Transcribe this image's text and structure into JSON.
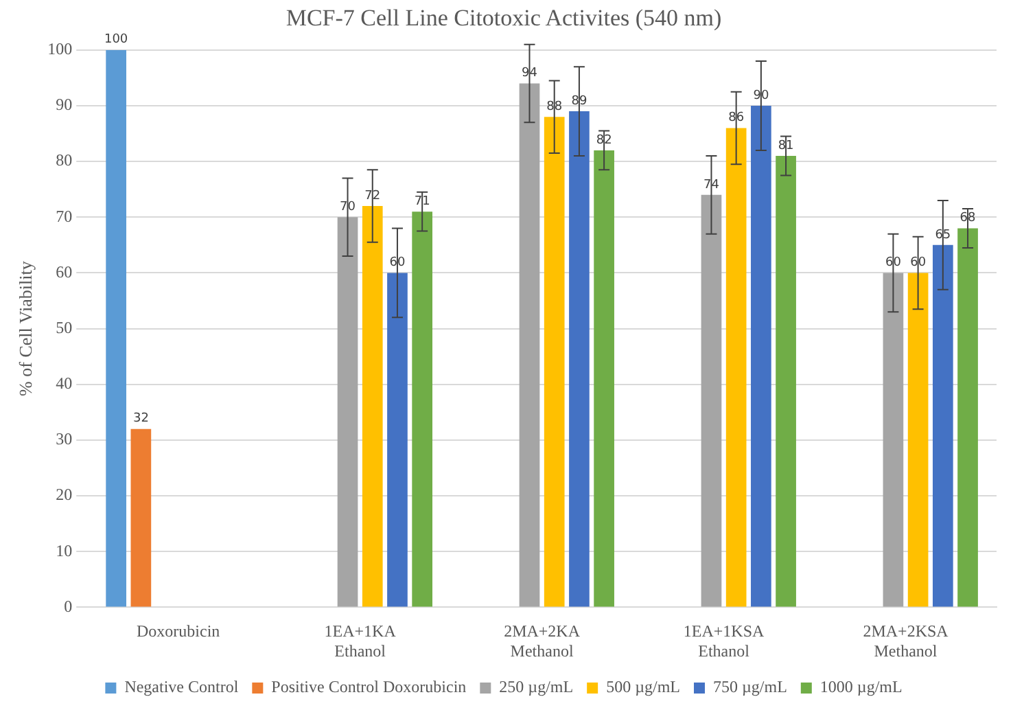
{
  "chart_data": {
    "type": "bar",
    "title": "MCF-7 Cell Line Citotoxic Activites (540 nm)",
    "ylabel": "% of Cell Viability",
    "categories": [
      "Doxorubicin",
      "1EA+1KA Ethanol",
      "2MA+2KA Methanol",
      "1EA+1KSA Ethanol",
      "2MA+2KSA Methanol"
    ],
    "series": [
      {
        "name": "Negative Control",
        "color": "#5b9bd5",
        "values": [
          100,
          null,
          null,
          null,
          null
        ]
      },
      {
        "name": "Positive Control Doxorubicin",
        "color": "#ed7d31",
        "values": [
          32,
          null,
          null,
          null,
          null
        ]
      },
      {
        "name": "250 µg/mL",
        "color": "#a5a5a5",
        "values": [
          null,
          70,
          94,
          74,
          60
        ],
        "errors": [
          null,
          7,
          7,
          7,
          7
        ]
      },
      {
        "name": "500 µg/mL",
        "color": "#ffc000",
        "values": [
          null,
          72,
          88,
          86,
          60
        ],
        "errors": [
          null,
          6.5,
          6.5,
          6.5,
          6.5
        ]
      },
      {
        "name": "750 µg/mL",
        "color": "#4472c4",
        "values": [
          null,
          60,
          89,
          90,
          65
        ],
        "errors": [
          null,
          8,
          8,
          8,
          8
        ]
      },
      {
        "name": "1000 µg/mL",
        "color": "#70ad47",
        "values": [
          null,
          71,
          82,
          81,
          68
        ],
        "errors": [
          null,
          3.5,
          3.5,
          3.5,
          3.5
        ]
      }
    ],
    "ylim": [
      0,
      100
    ],
    "yticks": [
      0,
      10,
      20,
      30,
      40,
      50,
      60,
      70,
      80,
      90,
      100
    ],
    "grid": "y",
    "legend": "bottom",
    "data_labels": true
  }
}
